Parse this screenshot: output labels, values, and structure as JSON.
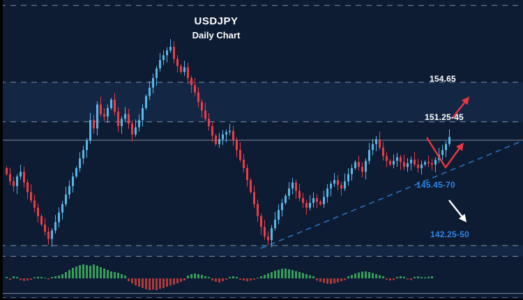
{
  "title": {
    "symbol": "USDJPY",
    "timeframe": "Daily Chart"
  },
  "colors": {
    "background": "#0d1c33",
    "bull_candle": "#57b8e8",
    "bear_candle": "#ef3b45",
    "hist_up": "#35a05a",
    "hist_down": "#b03a3a",
    "level_line": "#93a1b1",
    "trendline_blue": "#2d74c9",
    "label_white": "#ffffff",
    "label_blue": "#2f86e9",
    "arrow_red": "#e8373d",
    "arrow_white": "#ffffff"
  },
  "levels": [
    {
      "label": "154.65",
      "price": 154.65,
      "color": "white"
    },
    {
      "label": "151.25-45",
      "price": 151.35,
      "color": "white"
    },
    {
      "label": "145.45-70",
      "price": 145.57,
      "color": "blue"
    },
    {
      "label": "142.25-50",
      "price": 142.37,
      "color": "blue"
    }
  ],
  "chart_data": {
    "type": "candlestick",
    "title": "USDJPY Daily Chart",
    "symbol": "USDJPY",
    "timeframe": "daily",
    "ylim": [
      140.0,
      161.5
    ],
    "grid": false,
    "resistance_levels": [
      "154.65",
      "151.25-45"
    ],
    "support_levels": [
      "145.45-70",
      "142.25-50"
    ],
    "lines": [
      {
        "price": 161.05,
        "style": "dashed"
      },
      {
        "price": 154.65,
        "style": "dashed"
      },
      {
        "price": 151.35,
        "style": "dashed"
      },
      {
        "price": 149.82,
        "style": "solid"
      },
      {
        "price": 141.05,
        "style": "dashed"
      },
      {
        "price": 140.15,
        "style": "dashed"
      }
    ],
    "zones": [
      [
        154.65,
        151.35
      ],
      [
        141.05,
        140.15
      ]
    ],
    "trendline": {
      "type": "ascending-support",
      "style": "dashed",
      "from_price": 141.2,
      "to_price": 149.8
    },
    "arrows": [
      {
        "name": "breakout-up-arrow",
        "color": "red",
        "direction": "up",
        "near_level": "154.65"
      },
      {
        "name": "rejection-bounce-arrow",
        "color": "red",
        "direction": "down-then-up",
        "near_level": "151.25-45"
      },
      {
        "name": "breakdown-arrow",
        "color": "white",
        "direction": "down",
        "near_level": "142.25-50"
      }
    ],
    "closes": [
      147.0,
      146.4,
      146.0,
      146.8,
      147.2,
      146.3,
      145.5,
      144.8,
      144.2,
      143.5,
      142.8,
      142.2,
      141.6,
      142.3,
      143.0,
      143.8,
      144.5,
      145.3,
      146.0,
      146.8,
      147.5,
      148.3,
      149.0,
      149.8,
      151.5,
      150.8,
      152.8,
      152.0,
      151.8,
      152.5,
      153.2,
      152.2,
      151.0,
      151.6,
      152.0,
      151.2,
      150.3,
      150.9,
      151.5,
      152.5,
      153.5,
      154.2,
      155.0,
      155.8,
      156.5,
      156.9,
      157.3,
      157.6,
      156.6,
      156.0,
      155.5,
      155.9,
      155.0,
      154.4,
      153.8,
      153.0,
      152.3,
      151.6,
      151.0,
      150.2,
      149.5,
      149.9,
      150.3,
      150.5,
      150.6,
      149.8,
      149.0,
      148.2,
      147.5,
      146.5,
      145.5,
      144.5,
      143.5,
      142.6,
      141.8,
      141.5,
      142.5,
      143.2,
      144.0,
      144.6,
      145.2,
      145.8,
      146.3,
      145.6,
      145.0,
      144.6,
      144.2,
      144.6,
      145.0,
      144.7,
      144.5,
      145.1,
      145.8,
      146.2,
      146.5,
      146.1,
      145.8,
      146.4,
      147.0,
      147.5,
      148.0,
      147.6,
      147.2,
      148.1,
      149.0,
      149.5,
      149.9,
      149.2,
      148.5,
      148.1,
      147.8,
      148.1,
      148.4,
      148.0,
      147.6,
      147.9,
      148.2,
      147.8,
      147.5,
      147.8,
      148.0,
      147.9,
      147.8,
      148.2,
      148.6,
      149.0,
      149.5,
      150.1
    ],
    "histogram": [
      0.1,
      -0.1,
      0.15,
      0.1,
      -0.12,
      -0.18,
      -0.15,
      -0.1,
      0.08,
      0.12,
      0.1,
      0.05,
      -0.08,
      0.1,
      0.15,
      0.2,
      0.3,
      0.45,
      0.6,
      0.75,
      0.85,
      0.95,
      1.0,
      0.95,
      0.9,
      1.0,
      0.9,
      0.8,
      0.7,
      0.6,
      0.5,
      0.45,
      0.4,
      0.3,
      0.2,
      -0.2,
      -0.35,
      -0.5,
      -0.6,
      -0.7,
      -0.78,
      -0.85,
      -0.8,
      -0.85,
      -0.75,
      -0.7,
      -0.6,
      -0.5,
      -0.45,
      -0.35,
      -0.25,
      -0.15,
      0.2,
      0.3,
      0.35,
      0.3,
      0.25,
      0.15,
      0.1,
      -0.15,
      -0.25,
      -0.3,
      -0.2,
      -0.1,
      0.1,
      0.15,
      0.1,
      -0.1,
      -0.15,
      -0.2,
      -0.15,
      -0.1,
      0.05,
      0.15,
      0.25,
      0.35,
      0.45,
      0.55,
      0.62,
      0.68,
      0.7,
      0.65,
      0.6,
      0.52,
      0.45,
      0.38,
      0.3,
      0.22,
      0.15,
      -0.15,
      -0.25,
      -0.32,
      -0.38,
      -0.4,
      -0.35,
      -0.28,
      -0.2,
      -0.12,
      0.15,
      0.25,
      0.35,
      0.42,
      0.48,
      0.5,
      0.45,
      0.38,
      0.3,
      0.22,
      0.15,
      -0.1,
      -0.15,
      -0.12,
      0.1,
      0.15,
      0.12,
      -0.08,
      -0.12,
      0.1,
      0.14,
      0.1,
      0.08,
      0.12,
      0.15,
      0,
      0,
      0,
      0,
      0
    ]
  }
}
